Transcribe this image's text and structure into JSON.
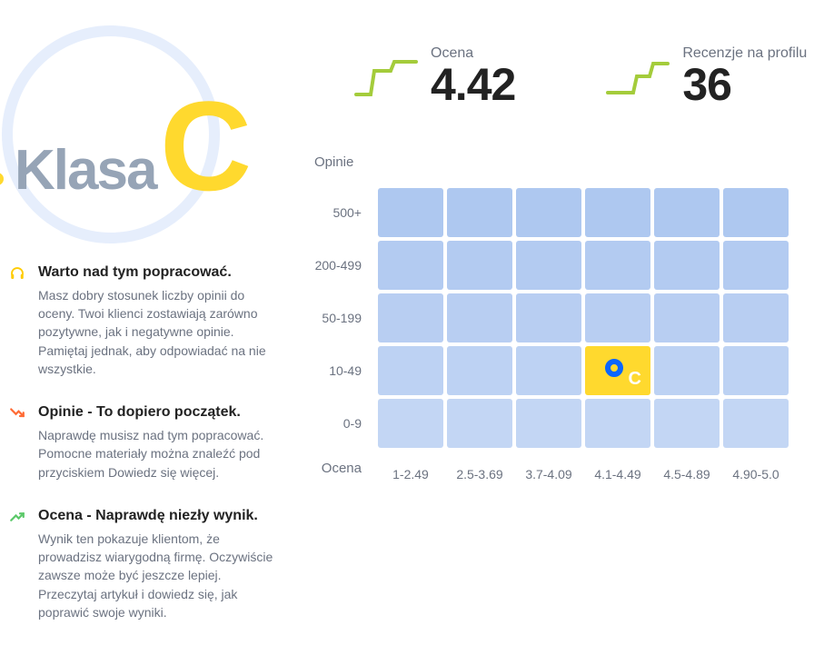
{
  "badge": {
    "label": "Klasa",
    "grade_letter": "C",
    "label_color": "#96a4b6",
    "letter_color": "#ffd92e",
    "ring_color": "#e6eefc",
    "dot_color": "#ffd92e"
  },
  "stats": {
    "rating": {
      "label": "Ocena",
      "value": "4.42",
      "spark_color": "#a4cc3b"
    },
    "reviews": {
      "label": "Recenzje na profilu",
      "value": "36",
      "spark_color": "#a4cc3b"
    }
  },
  "feedback": [
    {
      "icon": "headphones",
      "icon_color": "#ffcc00",
      "title": "Warto nad tym popracować.",
      "desc": "Masz dobry stosunek liczby opinii do oceny. Twoi klienci zostawiają zarówno pozytywne, jak i negatywne opinie. Pamiętaj jednak, aby odpowiadać na nie wszystkie."
    },
    {
      "icon": "trend-down",
      "icon_color": "#ff6b35",
      "title": "Opinie - To dopiero początek.",
      "desc": "Naprawdę musisz nad tym popracować. Pomocne materiały można znaleźć pod przyciskiem Dowiedz się więcej."
    },
    {
      "icon": "trend-up",
      "icon_color": "#5cc96a",
      "title": "Ocena - Naprawdę niezły wynik.",
      "desc": "Wynik ten pokazuje klientom, że prowadzisz wiarygodną firmę. Oczywiście zawsze może być jeszcze lepiej. Przeczytaj artykuł i dowiedz się, jak poprawić swoje wyniki."
    }
  ],
  "heatmap": {
    "y_axis_label": "Opinie",
    "x_axis_label": "Ocena",
    "y_categories": [
      "500+",
      "200-499",
      "50-199",
      "10-49",
      "0-9"
    ],
    "x_categories": [
      "1-2.49",
      "2.5-3.69",
      "3.7-4.09",
      "4.1-4.49",
      "4.5-4.89",
      "4.90-5.0"
    ],
    "cell_color_default": "#b9cff2",
    "cell_gradient_rows": [
      "#aec8f0",
      "#b3cbf1",
      "#b8cef2",
      "#bdd2f3",
      "#c3d6f4"
    ],
    "marker": {
      "row": 3,
      "col": 3,
      "cell_color": "#ffd92e",
      "ring_color": "#0a66ff",
      "letter": "C",
      "letter_color": "#ffffff"
    }
  },
  "colors": {
    "text_muted": "#6b7280",
    "text_strong": "#222222",
    "background": "#ffffff"
  }
}
